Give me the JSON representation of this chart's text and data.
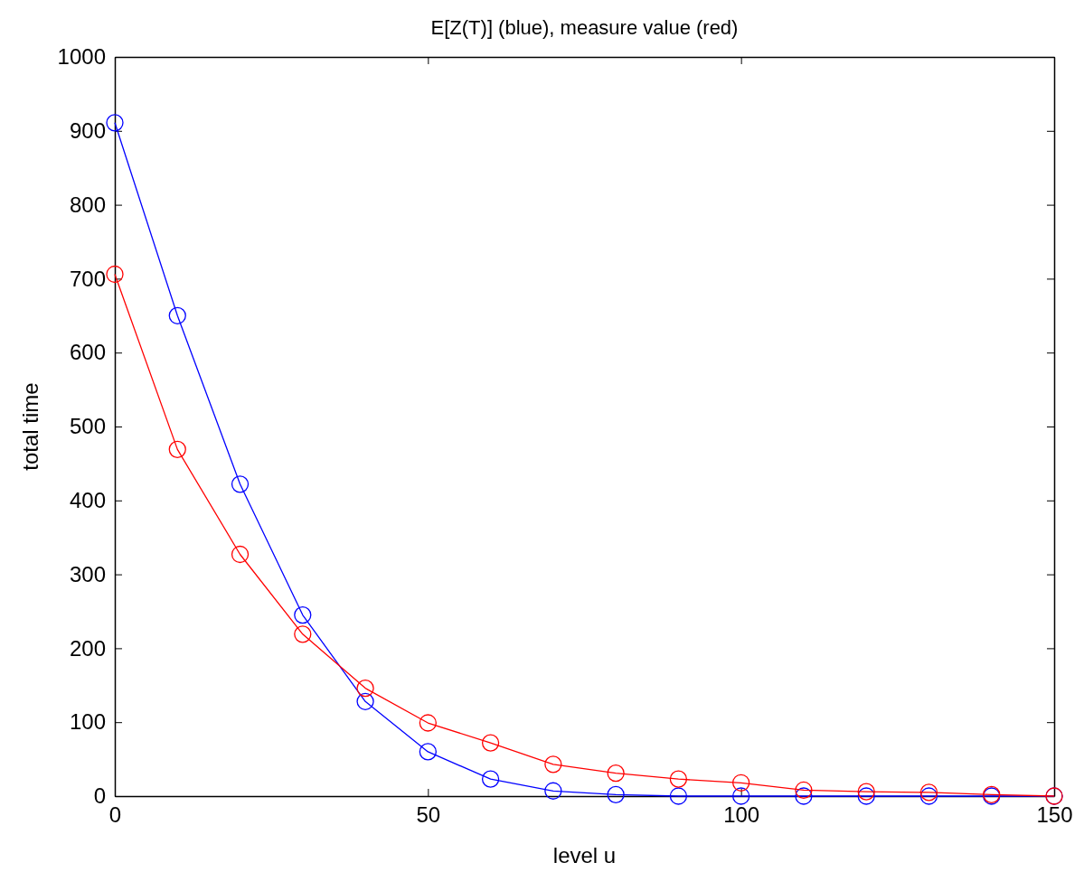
{
  "chart_data": {
    "type": "line",
    "title": "E[Z(T)] (blue), measure value (red)",
    "xlabel": "level u",
    "ylabel": "total time",
    "x": [
      0,
      10,
      20,
      30,
      40,
      50,
      60,
      70,
      80,
      90,
      100,
      110,
      120,
      130,
      140,
      150
    ],
    "series": [
      {
        "color": "#0000ff",
        "values": [
          911,
          650,
          422,
          245,
          128,
          60,
          23,
          7,
          2,
          0,
          0,
          0,
          0,
          0,
          0,
          0
        ]
      },
      {
        "color": "#ff0000",
        "values": [
          706,
          469,
          327,
          219,
          146,
          99,
          72,
          43,
          31,
          23,
          18,
          8,
          6,
          5,
          2,
          0
        ]
      }
    ],
    "xlim": [
      0,
      150
    ],
    "xticks": [
      0,
      50,
      100,
      150
    ],
    "ylim": [
      0,
      1000
    ],
    "yticks": [
      0,
      100,
      200,
      300,
      400,
      500,
      600,
      700,
      800,
      900,
      1000
    ],
    "grid": false,
    "marker": "circle",
    "line_style": "solid"
  }
}
